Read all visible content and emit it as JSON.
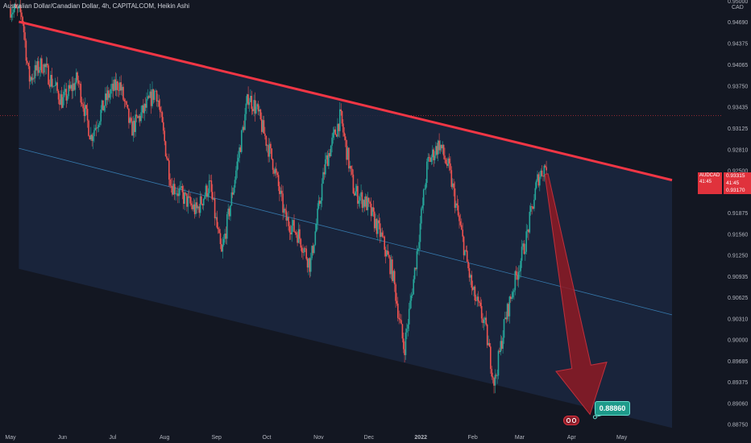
{
  "header": {
    "title": "Australian Dollar/Canadian Dollar, 4h, CAPITALCOM, Heikin Ashi"
  },
  "price_label": {
    "symbol": "AUDCAD",
    "price": "0.93315",
    "countdown": "41:45",
    "price2": "0.93170"
  },
  "target_label": "0.88860",
  "colors": {
    "up": "#26a69a",
    "down": "#ef5350",
    "trendline": "#f23645",
    "channel_fill": "#1b2740",
    "midline": "#3d8fc9",
    "arrow": "#8e1a24",
    "background": "#131722"
  },
  "chart_data": {
    "type": "candlestick",
    "title": "Australian Dollar/Canadian Dollar, 4h, CAPITALCOM, Heikin Ashi",
    "y_axis": {
      "currency": "CAD",
      "ylim": [
        0.8862,
        0.9502
      ],
      "ticks": [
        "0.95000",
        "0.94690",
        "0.94375",
        "0.94065",
        "0.93750",
        "0.93435",
        "0.93125",
        "0.92810",
        "0.92500",
        "0.92185",
        "0.91875",
        "0.91560",
        "0.91250",
        "0.90935",
        "0.90625",
        "0.90310",
        "0.90000",
        "0.89685",
        "0.89375",
        "0.89060",
        "0.88750"
      ]
    },
    "x_axis": {
      "ticks": [
        "May",
        "Jun",
        "Jul",
        "Aug",
        "Sep",
        "Oct",
        "Nov",
        "Dec",
        "2022",
        "Feb",
        "Mar",
        "Apr",
        "May"
      ]
    },
    "price_path": [
      {
        "date": "2021-05-01",
        "y": 0.949
      },
      {
        "date": "2021-05-08",
        "y": 0.948
      },
      {
        "date": "2021-05-12",
        "y": 0.9385
      },
      {
        "date": "2021-05-20",
        "y": 0.9408
      },
      {
        "date": "2021-06-01",
        "y": 0.9352
      },
      {
        "date": "2021-06-10",
        "y": 0.9385
      },
      {
        "date": "2021-06-18",
        "y": 0.93
      },
      {
        "date": "2021-06-28",
        "y": 0.936
      },
      {
        "date": "2021-07-05",
        "y": 0.938
      },
      {
        "date": "2021-07-12",
        "y": 0.931
      },
      {
        "date": "2021-07-20",
        "y": 0.934
      },
      {
        "date": "2021-07-27",
        "y": 0.937
      },
      {
        "date": "2021-08-05",
        "y": 0.923
      },
      {
        "date": "2021-08-20",
        "y": 0.919
      },
      {
        "date": "2021-08-28",
        "y": 0.923
      },
      {
        "date": "2021-09-04",
        "y": 0.9125
      },
      {
        "date": "2021-09-10",
        "y": 0.921
      },
      {
        "date": "2021-09-20",
        "y": 0.936
      },
      {
        "date": "2021-09-25",
        "y": 0.934
      },
      {
        "date": "2021-10-05",
        "y": 0.926
      },
      {
        "date": "2021-10-12",
        "y": 0.918
      },
      {
        "date": "2021-10-20",
        "y": 0.9155
      },
      {
        "date": "2021-10-27",
        "y": 0.911
      },
      {
        "date": "2021-11-05",
        "y": 0.926
      },
      {
        "date": "2021-11-14",
        "y": 0.933
      },
      {
        "date": "2021-11-22",
        "y": 0.922
      },
      {
        "date": "2021-11-30",
        "y": 0.92
      },
      {
        "date": "2021-12-08",
        "y": 0.9155
      },
      {
        "date": "2021-12-15",
        "y": 0.91
      },
      {
        "date": "2021-12-22",
        "y": 0.8985
      },
      {
        "date": "2021-12-28",
        "y": 0.9095
      },
      {
        "date": "2022-01-05",
        "y": 0.926
      },
      {
        "date": "2022-01-12",
        "y": 0.929
      },
      {
        "date": "2022-01-18",
        "y": 0.925
      },
      {
        "date": "2022-01-25",
        "y": 0.916
      },
      {
        "date": "2022-02-01",
        "y": 0.907
      },
      {
        "date": "2022-02-08",
        "y": 0.9025
      },
      {
        "date": "2022-02-14",
        "y": 0.8935
      },
      {
        "date": "2022-02-20",
        "y": 0.9025
      },
      {
        "date": "2022-02-26",
        "y": 0.9085
      },
      {
        "date": "2022-03-05",
        "y": 0.915
      },
      {
        "date": "2022-03-12",
        "y": 0.924
      },
      {
        "date": "2022-03-17",
        "y": 0.926
      }
    ],
    "annotations": {
      "upper_trendline": [
        {
          "date": "2021-05-06",
          "y": 0.947
        },
        {
          "date": "2022-05-31",
          "y": 0.9236
        }
      ],
      "mid_line": [
        {
          "date": "2021-05-06",
          "y": 0.9283
        },
        {
          "date": "2022-05-31",
          "y": 0.9037
        }
      ],
      "lower_channel": [
        {
          "date": "2021-05-06",
          "y": 0.9105
        },
        {
          "date": "2022-05-31",
          "y": 0.887
        }
      ],
      "arrow": {
        "from": {
          "date": "2022-03-17",
          "y": 0.9245
        },
        "to": {
          "date": "2022-04-12",
          "y": 0.889
        }
      },
      "target": {
        "date": "2022-04-15",
        "y": 0.8886,
        "label": "0.88860"
      }
    }
  }
}
